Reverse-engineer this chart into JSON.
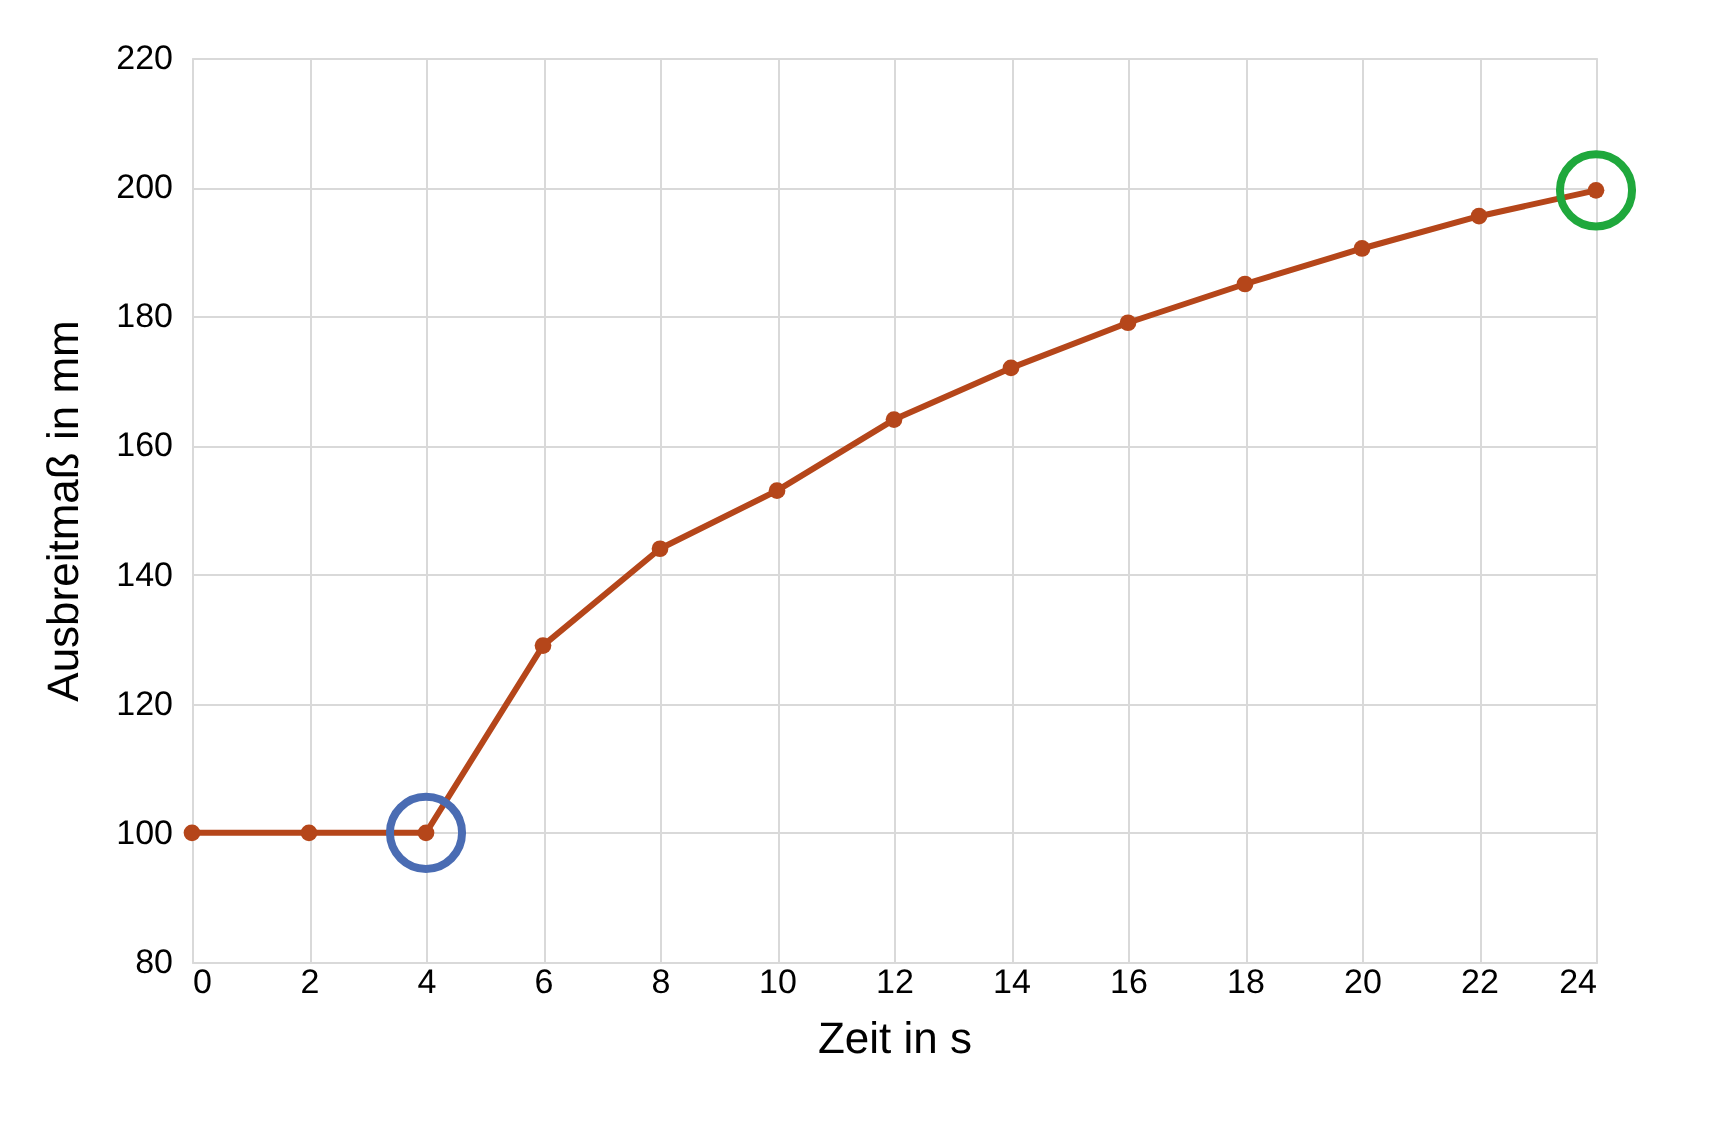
{
  "chart_data": {
    "type": "line",
    "xlabel": "Zeit in s",
    "ylabel": "Ausbreitmaß in mm",
    "x": [
      0,
      2,
      4,
      6,
      8,
      10,
      12,
      14,
      16,
      18,
      20,
      22,
      24
    ],
    "series": [
      {
        "color": "#b5461a",
        "values": [
          100,
          100,
          100,
          129,
          144,
          153,
          164,
          172,
          179,
          185,
          190.5,
          195.5,
          199.5
        ],
        "marker": "circle"
      },
      {
        "type": "scatter",
        "x": [
          4
        ],
        "color": "#4a6cb3",
        "values": [
          100
        ],
        "marker": "circle"
      },
      {
        "type": "scatter",
        "x": [
          24
        ],
        "color": "#1fa83c",
        "values": [
          199.5
        ],
        "marker": "circle"
      }
    ],
    "xlim": [
      0,
      24
    ],
    "xticks": [
      0,
      2,
      4,
      6,
      8,
      10,
      12,
      14,
      16,
      18,
      20,
      22,
      24
    ],
    "ylim": [
      80,
      220
    ],
    "yticks": [
      80,
      100,
      120,
      140,
      160,
      180,
      200,
      220
    ],
    "grid": true,
    "line_style": "solid"
  }
}
